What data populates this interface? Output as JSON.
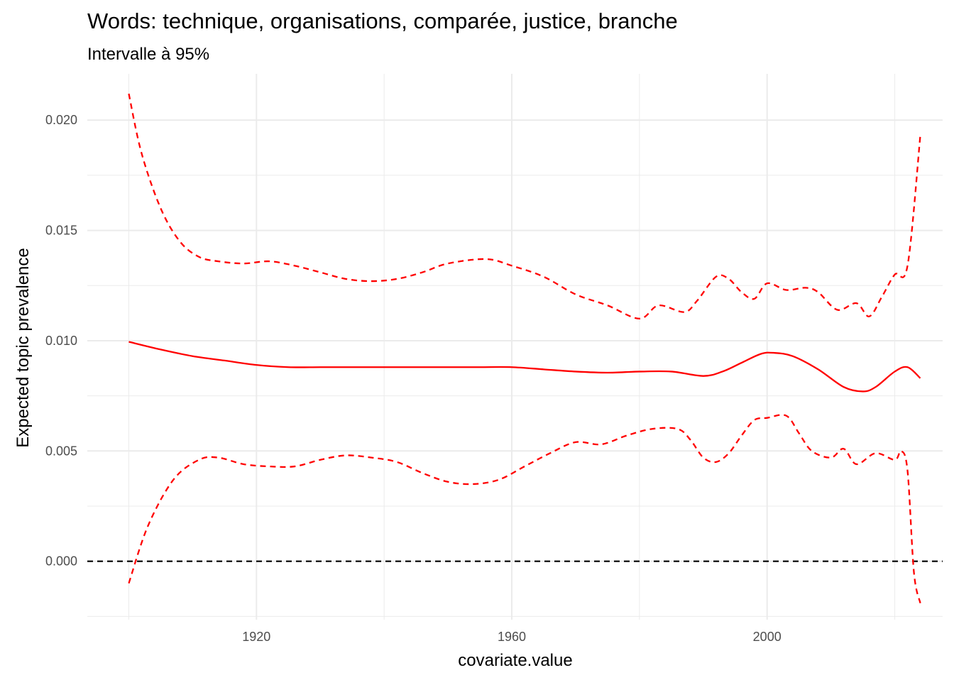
{
  "chart_data": {
    "type": "line",
    "title": "Words: technique, organisations, comparée, justice, branche",
    "subtitle": "Intervalle à 95%",
    "xlabel": "covariate.value",
    "ylabel": "Expected topic prevalence",
    "xlim": [
      1893.5,
      2027.5
    ],
    "ylim": [
      -0.00265,
      0.0221
    ],
    "x_ticks": [
      1920,
      1960,
      2000
    ],
    "x_tick_labels": [
      "1920",
      "1960",
      "2000"
    ],
    "y_ticks": [
      0,
      0.005,
      0.01,
      0.015,
      0.02
    ],
    "y_tick_labels": [
      "0.000",
      "0.005",
      "0.010",
      "0.015",
      "0.020"
    ],
    "grid": true,
    "reference_line": {
      "y": 0,
      "style": "dashed",
      "color": "#000000"
    },
    "colors": {
      "series": "#ff0000",
      "grid": "#ebebeb",
      "reference": "#000000"
    },
    "series": [
      {
        "role": "estimate",
        "style": "solid",
        "x": [
          1900,
          1905,
          1910,
          1915,
          1920,
          1925,
          1930,
          1935,
          1940,
          1945,
          1950,
          1955,
          1960,
          1965,
          1970,
          1975,
          1980,
          1985,
          1990,
          1993,
          1996,
          1999,
          2001,
          2004,
          2008,
          2012,
          2015,
          2017,
          2020,
          2022,
          2024
        ],
        "y": [
          0.00995,
          0.0096,
          0.0093,
          0.0091,
          0.0089,
          0.0088,
          0.0088,
          0.0088,
          0.0088,
          0.0088,
          0.0088,
          0.0088,
          0.0088,
          0.0087,
          0.0086,
          0.00855,
          0.0086,
          0.0086,
          0.0084,
          0.0086,
          0.009,
          0.0094,
          0.00945,
          0.0093,
          0.0087,
          0.0079,
          0.0077,
          0.0079,
          0.0086,
          0.0088,
          0.0083
        ]
      },
      {
        "role": "upper",
        "style": "dashed",
        "x": [
          1900,
          1902,
          1905,
          1908,
          1911,
          1914,
          1918,
          1922,
          1926,
          1930,
          1934,
          1938,
          1942,
          1946,
          1950,
          1956,
          1960,
          1965,
          1970,
          1975,
          1980,
          1983,
          1987,
          1989,
          1992,
          1994,
          1996,
          1998,
          2000,
          2003,
          2006,
          2008,
          2011,
          2014,
          2016,
          2018,
          2020,
          2022,
          2024
        ],
        "y": [
          0.0212,
          0.0185,
          0.016,
          0.0145,
          0.0138,
          0.0136,
          0.0135,
          0.0136,
          0.0134,
          0.0131,
          0.0128,
          0.0127,
          0.0128,
          0.0131,
          0.0135,
          0.0137,
          0.0134,
          0.0129,
          0.0121,
          0.0116,
          0.011,
          0.0116,
          0.0113,
          0.0118,
          0.0129,
          0.0128,
          0.0122,
          0.0119,
          0.0126,
          0.0123,
          0.0124,
          0.0122,
          0.0114,
          0.0117,
          0.0111,
          0.012,
          0.013,
          0.0134,
          0.0193
        ]
      },
      {
        "role": "lower",
        "style": "dashed",
        "x": [
          1900,
          1903,
          1907,
          1911,
          1914,
          1918,
          1922,
          1926,
          1930,
          1934,
          1938,
          1942,
          1946,
          1950,
          1954,
          1958,
          1962,
          1966,
          1970,
          1974,
          1978,
          1982,
          1986,
          1988,
          1990,
          1992,
          1994,
          1996,
          1998,
          2000,
          2003,
          2005,
          2007,
          2010,
          2012,
          2014,
          2017,
          2020,
          2021,
          2022,
          2023,
          2024
        ],
        "y": [
          -0.001,
          0.0016,
          0.0037,
          0.0046,
          0.0047,
          0.0044,
          0.0043,
          0.0043,
          0.0046,
          0.0048,
          0.0047,
          0.0045,
          0.004,
          0.0036,
          0.0035,
          0.0037,
          0.0043,
          0.0049,
          0.0054,
          0.0053,
          0.0057,
          0.006,
          0.006,
          0.0055,
          0.0047,
          0.0045,
          0.0049,
          0.0057,
          0.0064,
          0.0065,
          0.0066,
          0.0058,
          0.005,
          0.0047,
          0.0051,
          0.0044,
          0.0049,
          0.0046,
          0.005,
          0.0041,
          -0.0005,
          -0.0019
        ]
      }
    ]
  }
}
